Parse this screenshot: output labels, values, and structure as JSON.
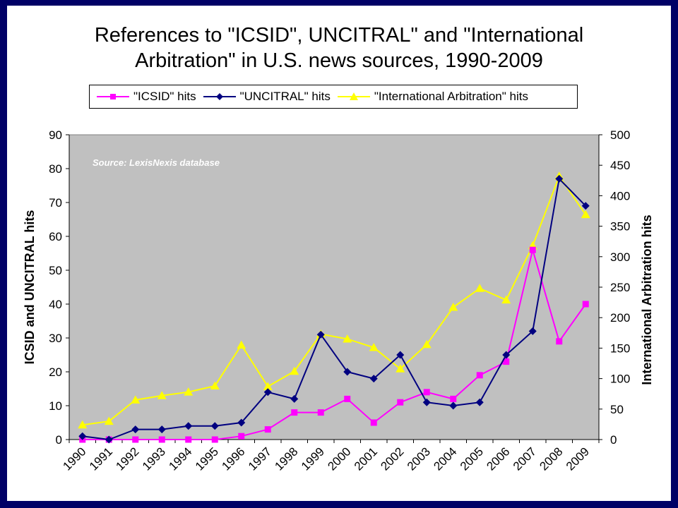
{
  "chart_data": {
    "type": "line",
    "title": [
      "References to \"ICSID\", UNCITRAL\" and \"International",
      "Arbitration\" in U.S. news sources, 1990-2009"
    ],
    "annotation": "Source: LexisNexis database",
    "ylabel_left": "ICSID and UNCITRAL hits",
    "ylabel_right": "International Arbitration hits",
    "ylim_left": [
      0,
      90
    ],
    "yticks_left": [
      "0",
      "10",
      "20",
      "30",
      "40",
      "50",
      "60",
      "70",
      "80",
      "90"
    ],
    "ylim_right": [
      0,
      500
    ],
    "yticks_right": [
      "0",
      "50",
      "100",
      "150",
      "200",
      "250",
      "300",
      "350",
      "400",
      "450",
      "500"
    ],
    "categories": [
      "1990",
      "1991",
      "1992",
      "1993",
      "1994",
      "1995",
      "1996",
      "1997",
      "1998",
      "1999",
      "2000",
      "2001",
      "2002",
      "2003",
      "2004",
      "2005",
      "2006",
      "2007",
      "2008",
      "2009"
    ],
    "grid": false,
    "plot_background": "#c0c0c0",
    "legend_position": "top",
    "series": [
      {
        "name": "\"ICSID\" hits",
        "axis": "left",
        "color": "#ff00ff",
        "marker": "square",
        "values": [
          0,
          0,
          0,
          0,
          0,
          0,
          1,
          3,
          8,
          8,
          12,
          5,
          11,
          14,
          12,
          19,
          23,
          56,
          29,
          40
        ]
      },
      {
        "name": "\"UNCITRAL\" hits",
        "axis": "left",
        "color": "#000080",
        "marker": "diamond",
        "values": [
          1,
          0,
          3,
          3,
          4,
          4,
          5,
          14,
          12,
          31,
          20,
          18,
          25,
          11,
          10,
          11,
          25,
          32,
          77,
          69
        ]
      },
      {
        "name": "\"International Arbitration\" hits",
        "axis": "right",
        "color": "#ffff00",
        "marker": "triangle",
        "values": [
          24,
          30,
          65,
          72,
          78,
          88,
          155,
          87,
          112,
          173,
          165,
          151,
          116,
          156,
          217,
          248,
          229,
          318,
          432,
          369
        ]
      }
    ]
  }
}
